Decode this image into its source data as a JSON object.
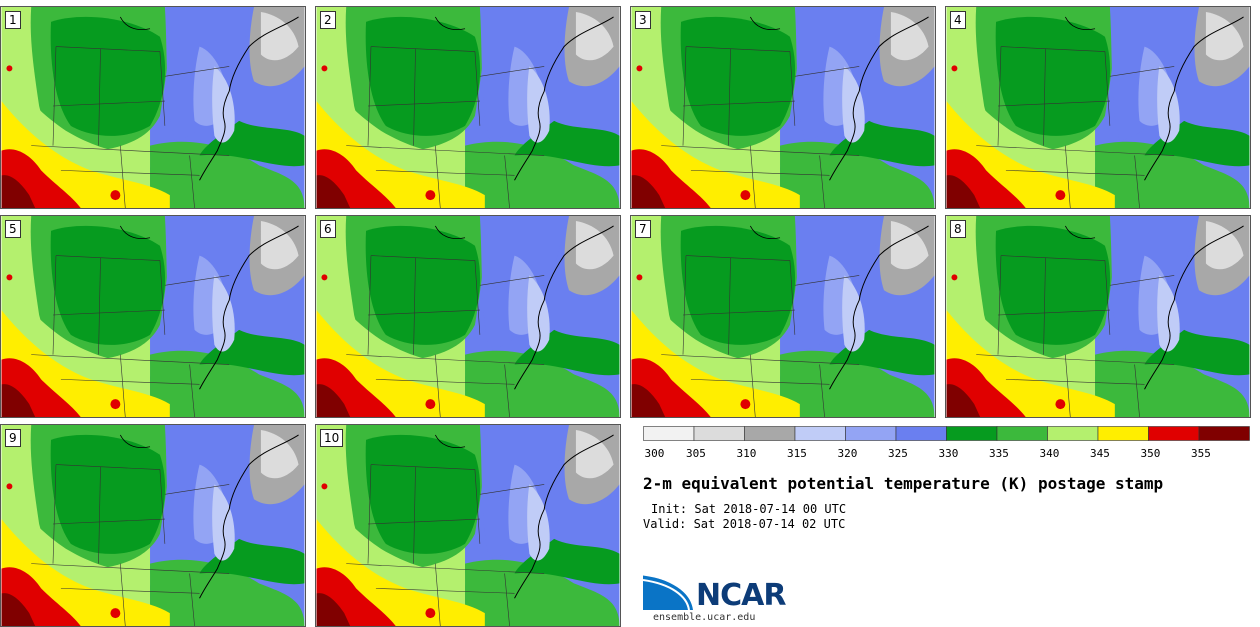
{
  "panels": [
    {
      "label": "1"
    },
    {
      "label": "2"
    },
    {
      "label": "3"
    },
    {
      "label": "4"
    },
    {
      "label": "5"
    },
    {
      "label": "6"
    },
    {
      "label": "7"
    },
    {
      "label": "8"
    },
    {
      "label": "9"
    },
    {
      "label": "10"
    }
  ],
  "colorbar": {
    "colors": [
      "#f2f2f2",
      "#dcdcdc",
      "#a8a8a8",
      "#c0ccf7",
      "#93a4f4",
      "#6a7ff0",
      "#069b1f",
      "#3cb93c",
      "#b4f06e",
      "#ffee00",
      "#e00000",
      "#800000"
    ],
    "ticks": [
      "300",
      "305",
      "310",
      "315",
      "320",
      "325",
      "330",
      "335",
      "340",
      "345",
      "350",
      "355"
    ]
  },
  "title": "2-m equivalent potential temperature (K) postage stamp",
  "init": "Init: Sat 2018-07-14 00 UTC",
  "valid": "Valid: Sat 2018-07-14 02 UTC",
  "logo": {
    "name": "NCAR",
    "url_text": "ensemble.ucar.edu"
  }
}
